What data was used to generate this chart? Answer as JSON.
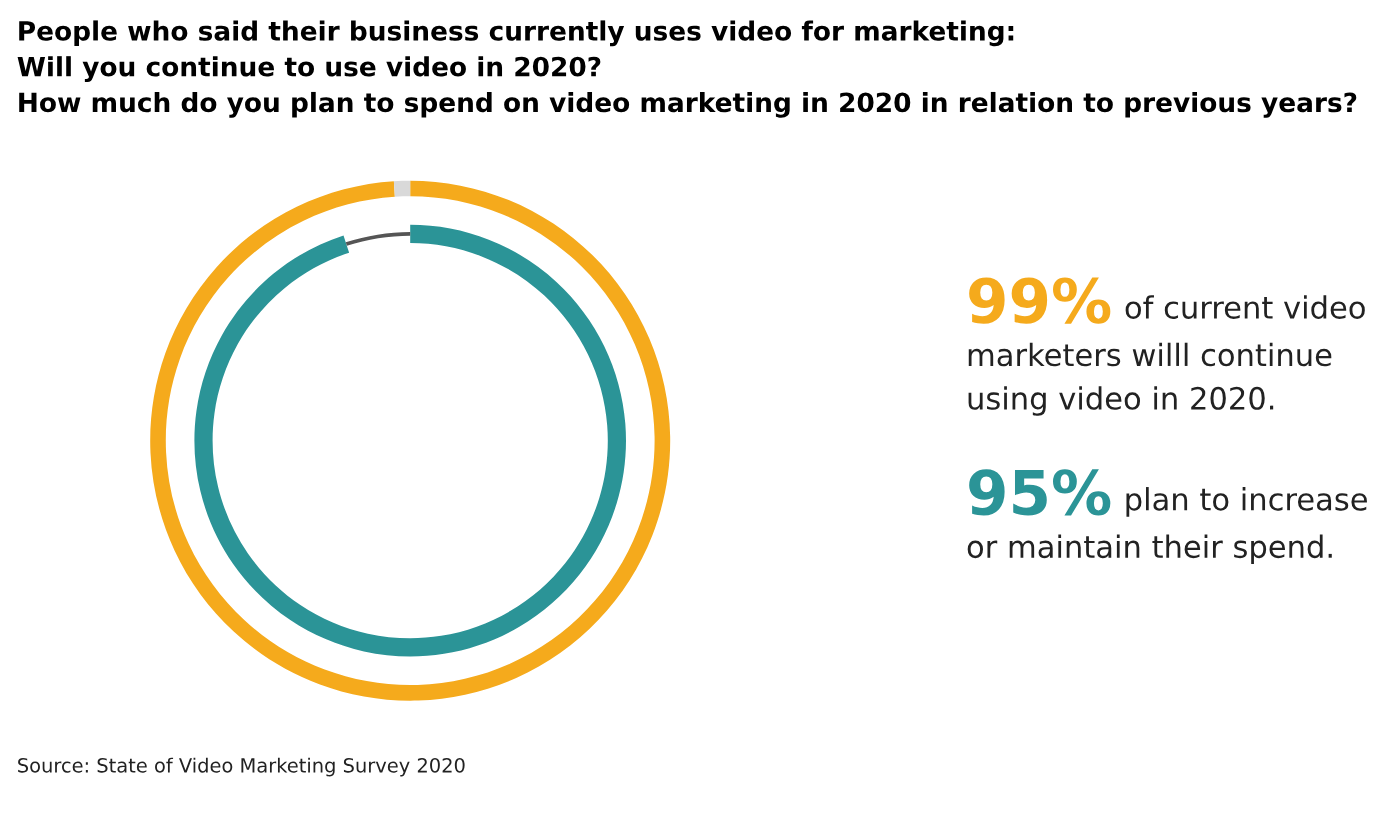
{
  "chart_data": {
    "type": "donut",
    "title": "People who said their business currently uses video for marketing:\nWill you continue to use video in 2020?\nHow much do you plan to spend on video marketing in 2020 in relation to previous years?",
    "categories": [
      null,
      null
    ],
    "series": [
      {
        "values": [
          95,
          5
        ],
        "colors": [
          "#2b9497",
          "#555555"
        ]
      },
      {
        "values": [
          99,
          1
        ],
        "colors": [
          "#f5aa1c",
          "#d9d9d9"
        ]
      }
    ],
    "annotations": [
      "99%",
      "of current video\nmarketers willl continue\nusing video in 2020.",
      "95%",
      "plan to increase\nor maintain their spend.",
      "Source: State of Video Marketing Survey 2020"
    ]
  }
}
